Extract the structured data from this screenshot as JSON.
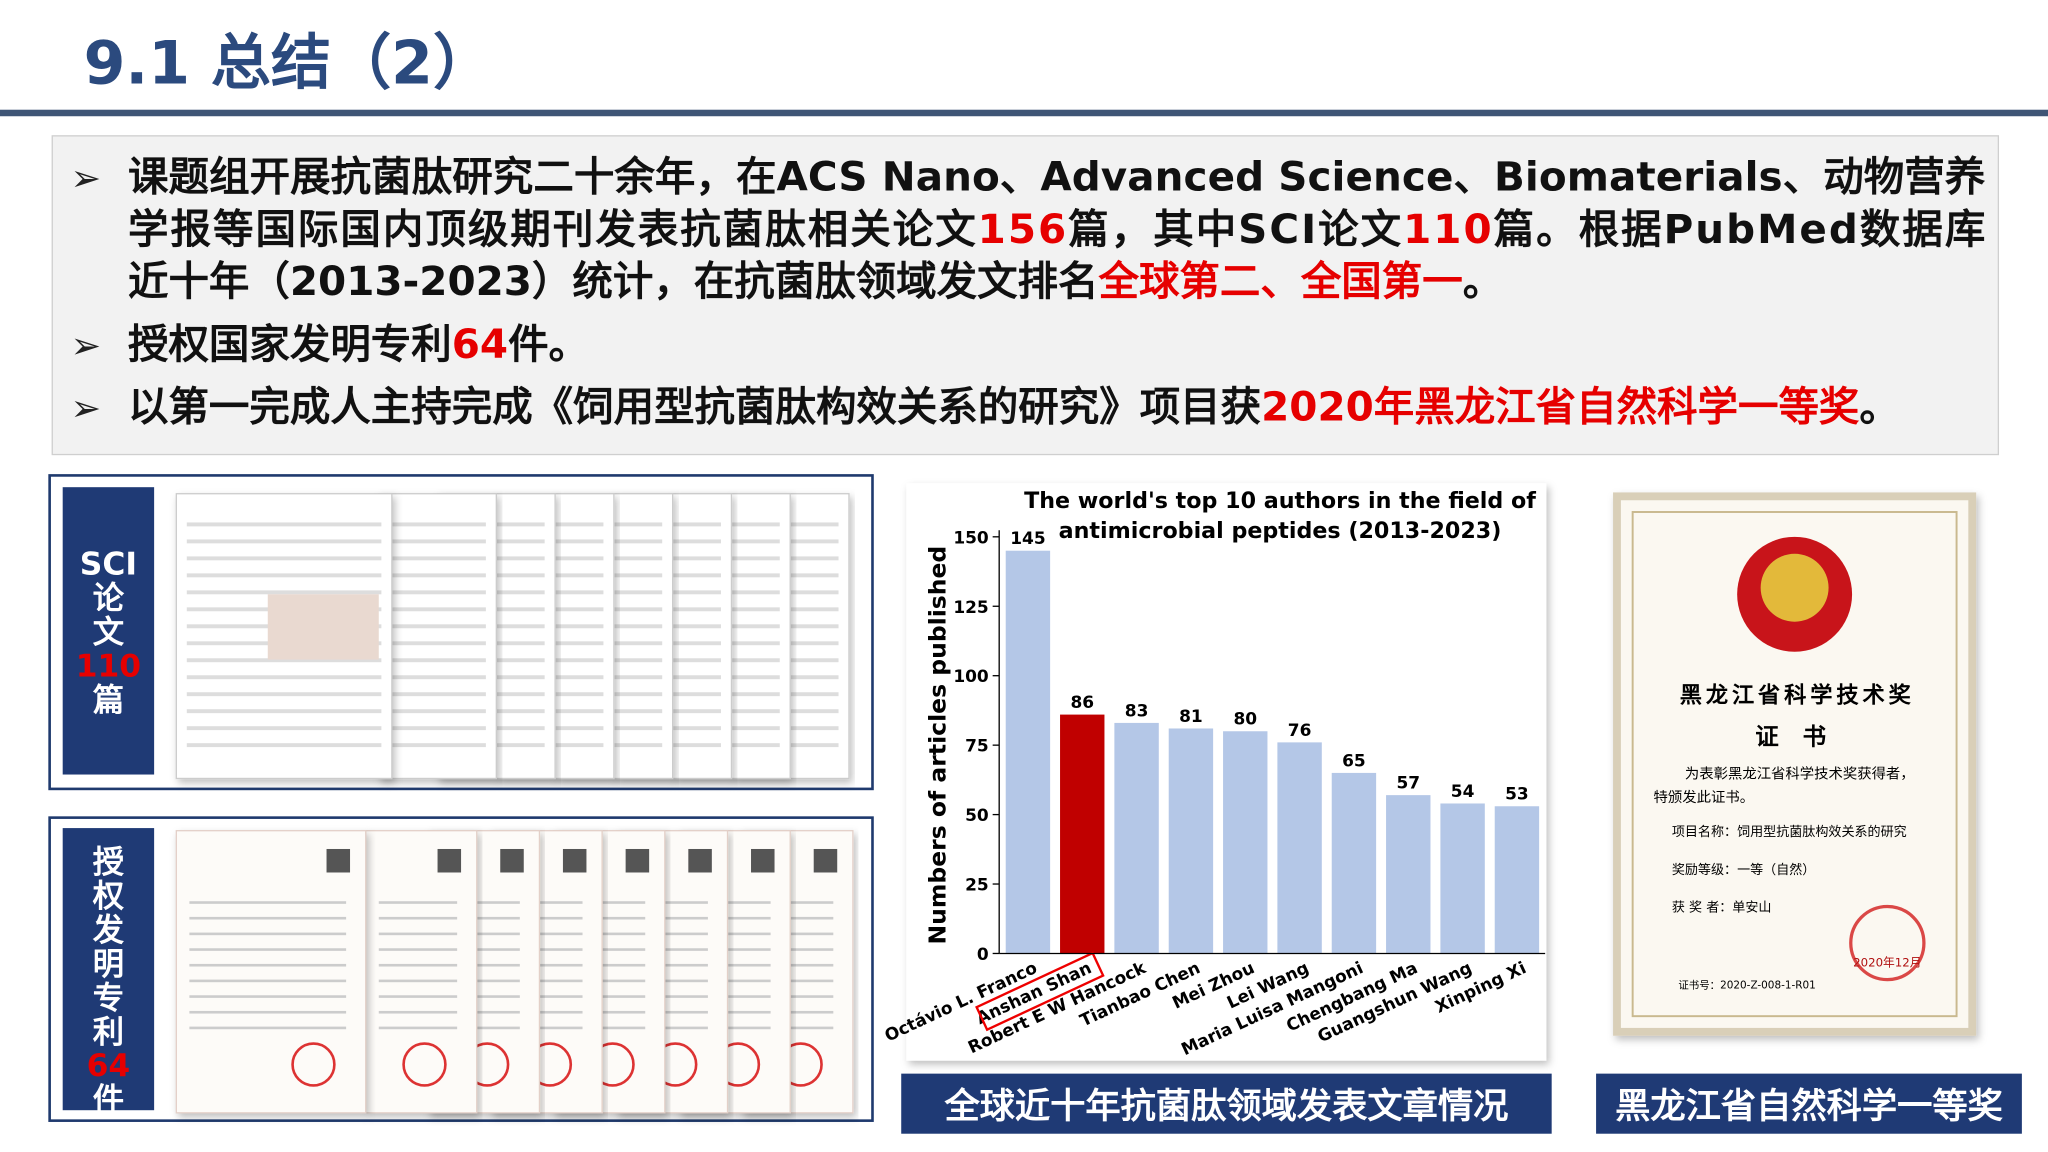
{
  "header": {
    "title": "9.1 总结（2）"
  },
  "bullets": [
    {
      "lines": [
        [
          {
            "text": "课题组开展抗菌肽研究二十余年，在ACS Nano、Advanced Science、Biomaterials、动物营养",
            "color": "#111111"
          }
        ],
        [
          {
            "text": "学报等国际国内顶级期刊发表抗菌肽相关论文",
            "color": "#111111"
          },
          {
            "text": "156",
            "color": "#e60000"
          },
          {
            "text": "篇，其中SCI论文",
            "color": "#111111"
          },
          {
            "text": "110",
            "color": "#e60000"
          },
          {
            "text": "篇。根据PubMed数据库",
            "color": "#111111"
          }
        ],
        [
          {
            "text": "近十年（2013-2023）统计，在抗菌肽领域发文排名",
            "color": "#111111"
          },
          {
            "text": "全球第二、全国第一",
            "color": "#e60000"
          },
          {
            "text": "。",
            "color": "#111111"
          }
        ]
      ]
    },
    {
      "lines": [
        [
          {
            "text": "授权国家发明专利",
            "color": "#111111"
          },
          {
            "text": "64",
            "color": "#e60000"
          },
          {
            "text": "件。",
            "color": "#111111"
          }
        ]
      ]
    },
    {
      "lines": [
        [
          {
            "text": "以第一完成人主持完成《饲用型抗菌肽构效关系的研究》项目获",
            "color": "#111111"
          },
          {
            "text": "2020年黑龙江省自然科学一等奖",
            "color": "#e60000"
          },
          {
            "text": "。",
            "color": "#111111"
          }
        ]
      ]
    }
  ],
  "panels": [
    {
      "label": [
        {
          "text": "SCI",
          "color": "#ffffff"
        },
        {
          "text": "论文",
          "color": "#ffffff"
        },
        {
          "text": "110",
          "color": "#e60000"
        },
        {
          "text": "篇",
          "color": "#ffffff"
        }
      ]
    },
    {
      "label": [
        {
          "text": "授权发明专利",
          "color": "#ffffff"
        },
        {
          "text": "64",
          "color": "#e60000"
        },
        {
          "text": "件",
          "color": "#ffffff"
        }
      ]
    }
  ],
  "chart_data": {
    "type": "bar",
    "title": [
      "The world's top 10 authors in the field of",
      "antimicrobial peptides (2013-2023)"
    ],
    "y_label": "Numbers of articles published",
    "categories": [
      "Octávio L. Franco",
      "Anshan Shan",
      "Robert E W Hancock",
      "Tianbao Chen",
      "Mei Zhou",
      "Lei Wang",
      "Maria Luisa Mangoni",
      "Chengbang Ma",
      "Guangshun Wang",
      "Xinping Xi"
    ],
    "values": [
      145,
      86,
      83,
      81,
      80,
      76,
      65,
      57,
      54,
      53
    ],
    "colors": [
      "#b4c7e7",
      "#c00000",
      "#b4c7e7",
      "#b4c7e7",
      "#b4c7e7",
      "#b4c7e7",
      "#b4c7e7",
      "#b4c7e7",
      "#b4c7e7",
      "#b4c7e7"
    ],
    "ylim": [
      0,
      150
    ],
    "yticks": [
      0,
      25,
      50,
      75,
      100,
      125,
      150
    ]
  },
  "captions": [
    "全球近十年抗菌肽领域发表文章情况",
    "黑龙江省自然科学一等奖"
  ],
  "certificate": {
    "title": "黑龙江省科学技术奖",
    "subtitle": "证 书",
    "body": [
      "为表彰黑龙江省科学技术奖获得者，",
      "特颁发此证书。"
    ],
    "fields": [
      "项目名称：饲用型抗菌肽构效关系的研究",
      "奖励等级：一等（自然）",
      "获 奖 者：单安山"
    ],
    "number": "证书号：2020-Z-008-1-R01",
    "date": "2020年12月"
  }
}
